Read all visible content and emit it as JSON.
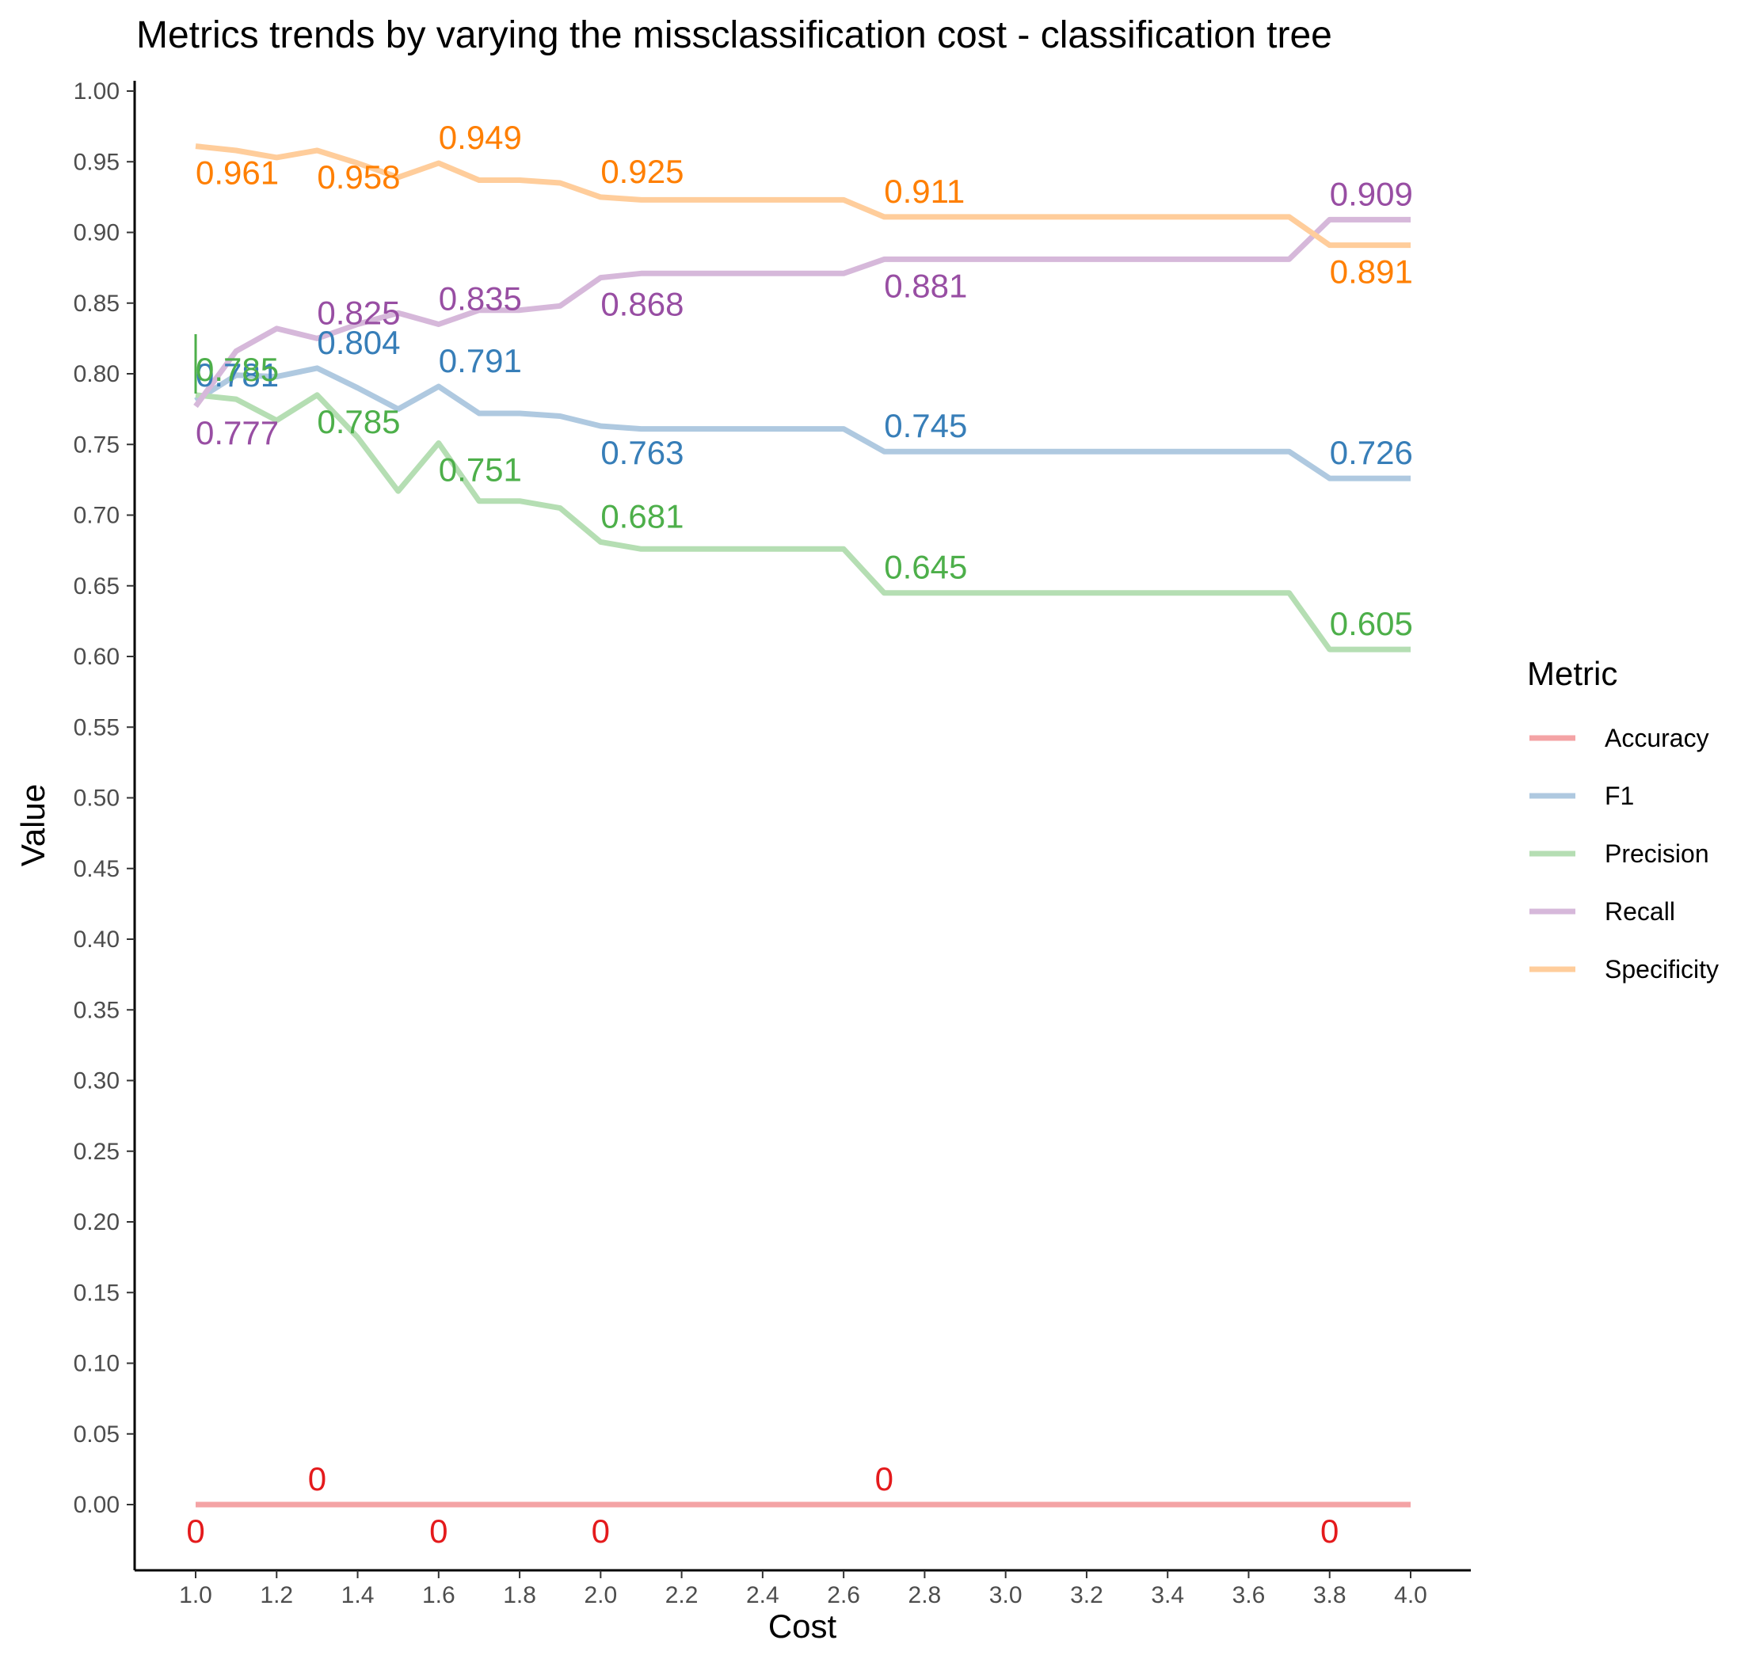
{
  "chart_data": {
    "type": "line",
    "title": "Metrics trends by varying the missclassification cost - classification tree",
    "xlabel": "Cost",
    "ylabel": "Value",
    "xlim": [
      1.0,
      4.0
    ],
    "ylim": [
      0.0,
      1.0
    ],
    "x_ticks": [
      "1.0",
      "1.2",
      "1.4",
      "1.6",
      "1.8",
      "2.0",
      "2.2",
      "2.4",
      "2.6",
      "2.8",
      "3.0",
      "3.2",
      "3.4",
      "3.6",
      "3.8",
      "4.0"
    ],
    "y_ticks": [
      "0.00",
      "0.05",
      "0.10",
      "0.15",
      "0.20",
      "0.25",
      "0.30",
      "0.35",
      "0.40",
      "0.45",
      "0.50",
      "0.55",
      "0.60",
      "0.65",
      "0.70",
      "0.75",
      "0.80",
      "0.85",
      "0.90",
      "0.95",
      "1.00"
    ],
    "grid": false,
    "legend": {
      "title": "Metric",
      "position": "right"
    },
    "x": [
      1.0,
      1.1,
      1.2,
      1.3,
      1.4,
      1.5,
      1.6,
      1.7,
      1.8,
      1.9,
      2.0,
      2.1,
      2.2,
      2.3,
      2.4,
      2.5,
      2.6,
      2.7,
      2.8,
      2.9,
      3.0,
      3.1,
      3.2,
      3.3,
      3.4,
      3.5,
      3.6,
      3.7,
      3.8,
      3.9,
      4.0
    ],
    "series": [
      {
        "name": "Accuracy",
        "color": "#f4a3a5",
        "label_color": "#e41a1c",
        "values": [
          0,
          0,
          0,
          0,
          0,
          0,
          0,
          0,
          0,
          0,
          0,
          0,
          0,
          0,
          0,
          0,
          0,
          0,
          0,
          0,
          0,
          0,
          0,
          0,
          0,
          0,
          0,
          0,
          0,
          0,
          0
        ]
      },
      {
        "name": "F1",
        "color": "#afc9e0",
        "label_color": "#377eb8",
        "values": [
          0.781,
          0.799,
          0.798,
          0.804,
          0.79,
          0.775,
          0.791,
          0.772,
          0.772,
          0.77,
          0.763,
          0.761,
          0.761,
          0.761,
          0.761,
          0.761,
          0.761,
          0.745,
          0.745,
          0.745,
          0.745,
          0.745,
          0.745,
          0.745,
          0.745,
          0.745,
          0.745,
          0.745,
          0.726,
          0.726,
          0.726
        ]
      },
      {
        "name": "Precision",
        "color": "#b5deb3",
        "label_color": "#4daf4a",
        "values": [
          0.785,
          0.782,
          0.767,
          0.785,
          0.755,
          0.717,
          0.751,
          0.71,
          0.71,
          0.705,
          0.681,
          0.676,
          0.676,
          0.676,
          0.676,
          0.676,
          0.676,
          0.645,
          0.645,
          0.645,
          0.645,
          0.645,
          0.645,
          0.645,
          0.645,
          0.645,
          0.645,
          0.645,
          0.605,
          0.605,
          0.605
        ]
      },
      {
        "name": "Recall",
        "color": "#d6b8da",
        "label_color": "#984ea3",
        "values": [
          0.777,
          0.816,
          0.832,
          0.825,
          0.835,
          0.843,
          0.835,
          0.845,
          0.845,
          0.848,
          0.868,
          0.871,
          0.871,
          0.871,
          0.871,
          0.871,
          0.871,
          0.881,
          0.881,
          0.881,
          0.881,
          0.881,
          0.881,
          0.881,
          0.881,
          0.881,
          0.881,
          0.881,
          0.909,
          0.909,
          0.909
        ]
      },
      {
        "name": "Specificity",
        "color": "#ffcd9b",
        "label_color": "#ff7f00",
        "values": [
          0.961,
          0.958,
          0.953,
          0.958,
          0.949,
          0.939,
          0.949,
          0.937,
          0.937,
          0.935,
          0.925,
          0.923,
          0.923,
          0.923,
          0.923,
          0.923,
          0.923,
          0.911,
          0.911,
          0.911,
          0.911,
          0.911,
          0.911,
          0.911,
          0.911,
          0.911,
          0.911,
          0.911,
          0.891,
          0.891,
          0.891
        ]
      }
    ],
    "annotations": [
      {
        "series": "Specificity",
        "text": "0.961",
        "x": 1.0,
        "y": 0.961,
        "offset": "below"
      },
      {
        "series": "Specificity",
        "text": "0.958",
        "x": 1.3,
        "y": 0.958,
        "offset": "below"
      },
      {
        "series": "Specificity",
        "text": "0.949",
        "x": 1.6,
        "y": 0.949,
        "offset": "above"
      },
      {
        "series": "Specificity",
        "text": "0.925",
        "x": 2.0,
        "y": 0.925,
        "offset": "above"
      },
      {
        "series": "Specificity",
        "text": "0.911",
        "x": 2.7,
        "y": 0.911,
        "offset": "above"
      },
      {
        "series": "Specificity",
        "text": "0.891",
        "x": 3.8,
        "y": 0.891,
        "offset": "below"
      },
      {
        "series": "Recall",
        "text": "0.777",
        "x": 1.0,
        "y": 0.777,
        "offset": "below"
      },
      {
        "series": "Recall",
        "text": "0.825",
        "x": 1.3,
        "y": 0.825,
        "offset": "above"
      },
      {
        "series": "Recall",
        "text": "0.835",
        "x": 1.6,
        "y": 0.835,
        "offset": "above"
      },
      {
        "series": "Recall",
        "text": "0.868",
        "x": 2.0,
        "y": 0.868,
        "offset": "below"
      },
      {
        "series": "Recall",
        "text": "0.881",
        "x": 2.7,
        "y": 0.881,
        "offset": "below"
      },
      {
        "series": "Recall",
        "text": "0.909",
        "x": 3.8,
        "y": 0.909,
        "offset": "above"
      },
      {
        "series": "F1",
        "text": "0.781",
        "x": 1.0,
        "y": 0.781,
        "offset": "above"
      },
      {
        "series": "F1",
        "text": "0.804",
        "x": 1.3,
        "y": 0.804,
        "offset": "above"
      },
      {
        "series": "F1",
        "text": "0.791",
        "x": 1.6,
        "y": 0.791,
        "offset": "above"
      },
      {
        "series": "F1",
        "text": "0.763",
        "x": 2.0,
        "y": 0.763,
        "offset": "below"
      },
      {
        "series": "F1",
        "text": "0.745",
        "x": 2.7,
        "y": 0.745,
        "offset": "above"
      },
      {
        "series": "F1",
        "text": "0.726",
        "x": 3.8,
        "y": 0.726,
        "offset": "above"
      },
      {
        "series": "Precision",
        "text": "0.785",
        "x": 1.0,
        "y": 0.785,
        "offset": "above"
      },
      {
        "series": "Precision",
        "text": "0.785",
        "x": 1.3,
        "y": 0.785,
        "offset": "below"
      },
      {
        "series": "Precision",
        "text": "0.751",
        "x": 1.6,
        "y": 0.751,
        "offset": "below"
      },
      {
        "series": "Precision",
        "text": "0.681",
        "x": 2.0,
        "y": 0.681,
        "offset": "above"
      },
      {
        "series": "Precision",
        "text": "0.645",
        "x": 2.7,
        "y": 0.645,
        "offset": "above"
      },
      {
        "series": "Precision",
        "text": "0.605",
        "x": 3.8,
        "y": 0.605,
        "offset": "above"
      },
      {
        "series": "Accuracy",
        "text": "0",
        "x": 1.0,
        "y": 0,
        "offset": "below"
      },
      {
        "series": "Accuracy",
        "text": "0",
        "x": 1.3,
        "y": 0,
        "offset": "above"
      },
      {
        "series": "Accuracy",
        "text": "0",
        "x": 1.6,
        "y": 0,
        "offset": "below"
      },
      {
        "series": "Accuracy",
        "text": "0",
        "x": 2.0,
        "y": 0,
        "offset": "below"
      },
      {
        "series": "Accuracy",
        "text": "0",
        "x": 2.7,
        "y": 0,
        "offset": "above"
      },
      {
        "series": "Accuracy",
        "text": "0",
        "x": 3.8,
        "y": 0,
        "offset": "below"
      }
    ]
  }
}
